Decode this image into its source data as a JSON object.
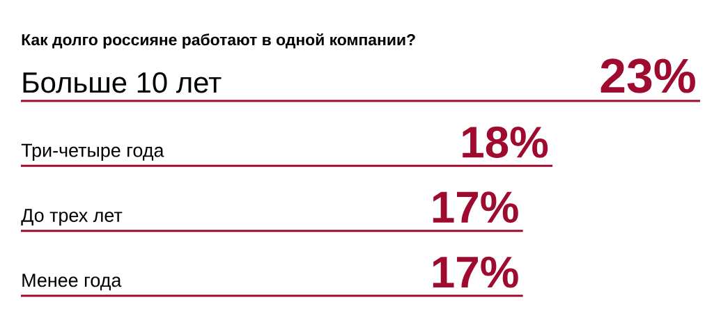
{
  "chart_data": {
    "type": "bar",
    "orientation": "horizontal",
    "title": "Как долго россияне работают в одной компании?",
    "categories": [
      "Больше 10 лет",
      "Три-четыре года",
      "До трех лет",
      "Менее года"
    ],
    "values": [
      23,
      18,
      17,
      17
    ],
    "value_labels": [
      "23%",
      "18%",
      "17%",
      "17%"
    ],
    "color": "#9e0b2f"
  }
}
